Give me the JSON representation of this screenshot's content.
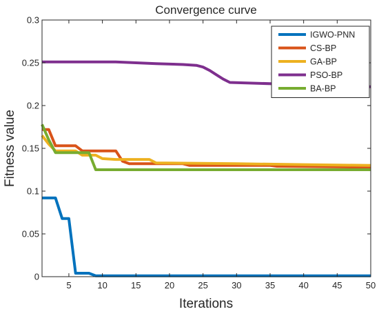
{
  "chart_data": {
    "type": "line",
    "title": "Convergence curve",
    "xlabel": "Iterations",
    "ylabel": "Fitness value",
    "xlim": [
      1,
      50
    ],
    "ylim": [
      0,
      0.3
    ],
    "xticks": [
      5,
      10,
      15,
      20,
      25,
      30,
      35,
      40,
      45,
      50
    ],
    "yticks": [
      0,
      0.05,
      0.1,
      0.15,
      0.2,
      0.25,
      0.3
    ],
    "xtick_labels": [
      "5",
      "10",
      "15",
      "20",
      "25",
      "30",
      "35",
      "40",
      "45",
      "50"
    ],
    "ytick_labels": [
      "0",
      "0.05",
      "0.1",
      "0.15",
      "0.2",
      "0.25",
      "0.3"
    ],
    "grid": false,
    "legend_position": "top-right",
    "series": [
      {
        "name": "IGWO-PNN",
        "color": "#0072BD",
        "points": [
          [
            1,
            0.092
          ],
          [
            3,
            0.092
          ],
          [
            4,
            0.068
          ],
          [
            5,
            0.068
          ],
          [
            6,
            0.004
          ],
          [
            8,
            0.004
          ],
          [
            9,
            0.001
          ],
          [
            50,
            0.001
          ]
        ]
      },
      {
        "name": "CS-BP",
        "color": "#D95319",
        "points": [
          [
            1,
            0.172
          ],
          [
            2,
            0.172
          ],
          [
            3,
            0.153
          ],
          [
            5,
            0.153
          ],
          [
            6,
            0.153
          ],
          [
            7,
            0.147
          ],
          [
            12,
            0.147
          ],
          [
            13,
            0.135
          ],
          [
            14,
            0.132
          ],
          [
            22,
            0.132
          ],
          [
            23,
            0.13
          ],
          [
            35,
            0.13
          ],
          [
            36,
            0.129
          ],
          [
            50,
            0.128
          ]
        ]
      },
      {
        "name": "GA-BP",
        "color": "#EDB120",
        "points": [
          [
            1,
            0.165
          ],
          [
            2,
            0.155
          ],
          [
            3,
            0.147
          ],
          [
            6,
            0.147
          ],
          [
            7,
            0.142
          ],
          [
            9,
            0.142
          ],
          [
            10,
            0.138
          ],
          [
            12,
            0.137
          ],
          [
            13,
            0.137
          ],
          [
            14,
            0.137
          ],
          [
            17,
            0.137
          ],
          [
            18,
            0.133
          ],
          [
            30,
            0.132
          ],
          [
            40,
            0.131
          ],
          [
            50,
            0.13
          ]
        ]
      },
      {
        "name": "PSO-BP",
        "color": "#7E2F8E",
        "points": [
          [
            1,
            0.251
          ],
          [
            12,
            0.251
          ],
          [
            18,
            0.249
          ],
          [
            22,
            0.248
          ],
          [
            24,
            0.247
          ],
          [
            25,
            0.245
          ],
          [
            26,
            0.241
          ],
          [
            27,
            0.236
          ],
          [
            28,
            0.231
          ],
          [
            29,
            0.227
          ],
          [
            50,
            0.222
          ]
        ]
      },
      {
        "name": "BA-BP",
        "color": "#77AC30",
        "points": [
          [
            1,
            0.178
          ],
          [
            2,
            0.16
          ],
          [
            3,
            0.145
          ],
          [
            8,
            0.145
          ],
          [
            9,
            0.125
          ],
          [
            50,
            0.125
          ]
        ]
      }
    ]
  }
}
